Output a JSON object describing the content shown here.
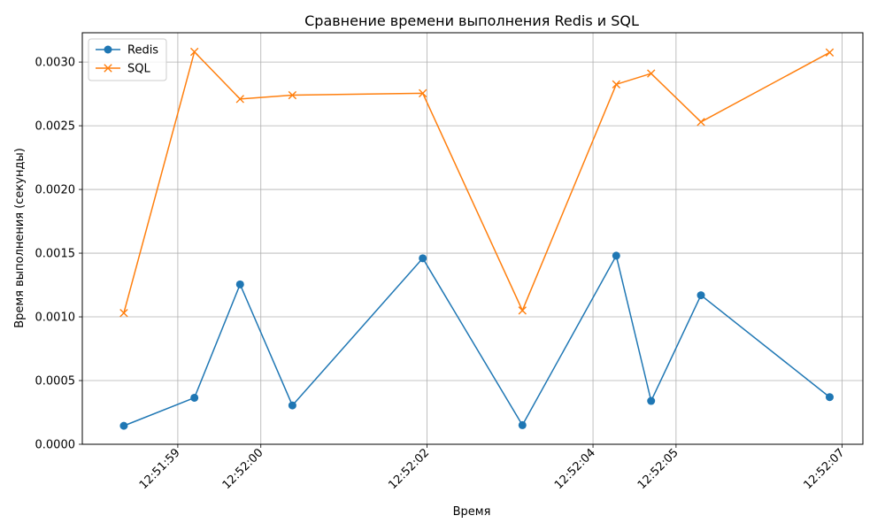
{
  "chart_data": {
    "type": "line",
    "title": "Сравнение времени выполнения Redis и SQL",
    "xlabel": "Время",
    "ylabel": "Время выполнения (секунды)",
    "x": [
      "12:51:58.35",
      "12:51:59.20",
      "12:51:59.75",
      "12:52:00.38",
      "12:52:01.95",
      "12:52:03.15",
      "12:52:04.28",
      "12:52:04.70",
      "12:52:05.30",
      "12:52:06.85"
    ],
    "x_time_seconds": [
      58.35,
      59.2,
      59.75,
      60.38,
      61.95,
      63.15,
      64.28,
      64.7,
      65.3,
      66.85
    ],
    "x_ticks": [
      "12:51:59",
      "12:52:00",
      "12:52:02",
      "12:52:04",
      "12:52:05",
      "12:52:07"
    ],
    "x_tick_seconds": [
      59.0,
      60.0,
      62.0,
      64.0,
      65.0,
      67.0
    ],
    "y_ticks": [
      "0.0000",
      "0.0005",
      "0.0010",
      "0.0015",
      "0.0020",
      "0.0025",
      "0.0030"
    ],
    "y_tick_values": [
      0,
      0.0005,
      0.001,
      0.0015,
      0.002,
      0.0025,
      0.003
    ],
    "ylim": [
      0,
      0.00323
    ],
    "grid": true,
    "legend_position": "top-left",
    "series": [
      {
        "name": "Redis",
        "color": "#1f77b4",
        "marker": "circle",
        "values": [
          0.000145,
          0.000365,
          0.001255,
          0.000305,
          0.00146,
          0.00015,
          0.00148,
          0.00034,
          0.00117,
          0.00037
        ]
      },
      {
        "name": "SQL",
        "color": "#ff7f0e",
        "marker": "x",
        "values": [
          0.00103,
          0.00308,
          0.00271,
          0.00274,
          0.002755,
          0.00105,
          0.002825,
          0.00291,
          0.00253,
          0.003075
        ]
      }
    ]
  }
}
